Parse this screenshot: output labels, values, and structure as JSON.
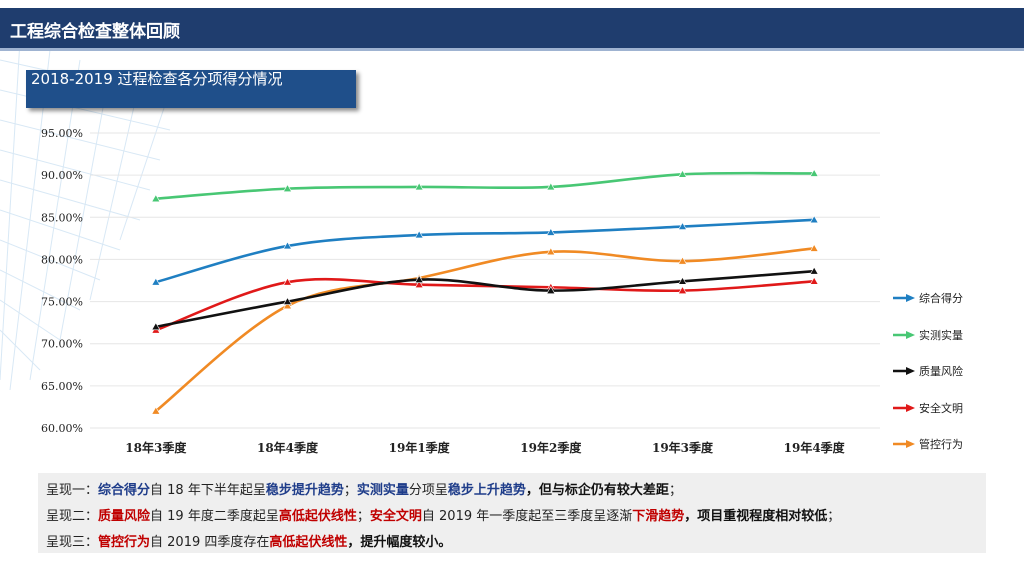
{
  "header": {
    "title": "工程综合检查整体回顾"
  },
  "subtitle": "2018-2019 过程检查各分项得分情况",
  "chart_data": {
    "type": "line",
    "categories": [
      "18年3季度",
      "18年4季度",
      "19年1季度",
      "19年2季度",
      "19年3季度",
      "19年4季度"
    ],
    "ylim": [
      60,
      95
    ],
    "yticks": [
      "60.00%",
      "65.00%",
      "70.00%",
      "75.00%",
      "80.00%",
      "85.00%",
      "90.00%",
      "95.00%"
    ],
    "grid": true,
    "legend_position": "right",
    "series": [
      {
        "name": "综合得分",
        "color": "#1f7fc2",
        "values": [
          77.3,
          81.6,
          82.9,
          83.2,
          83.9,
          84.7
        ]
      },
      {
        "name": "实测实量",
        "color": "#48c774",
        "values": [
          87.2,
          88.4,
          88.6,
          88.6,
          90.1,
          90.2
        ]
      },
      {
        "name": "质量风险",
        "color": "#111111",
        "values": [
          72.0,
          75.0,
          77.6,
          76.3,
          77.4,
          78.6
        ]
      },
      {
        "name": "安全文明",
        "color": "#e01919",
        "values": [
          71.6,
          77.3,
          77.0,
          76.7,
          76.3,
          77.4
        ]
      },
      {
        "name": "管控行为",
        "color": "#f08a24",
        "values": [
          62.0,
          74.5,
          77.8,
          80.9,
          79.8,
          81.3
        ]
      }
    ]
  },
  "notes": [
    [
      {
        "t": "呈现一：",
        "s": ""
      },
      {
        "t": "综合得分",
        "s": "b-blue"
      },
      {
        "t": "自 18 年下半年起呈",
        "s": ""
      },
      {
        "t": "稳步提升趋势",
        "s": "b-blue"
      },
      {
        "t": "；",
        "s": ""
      },
      {
        "t": "实测实量",
        "s": "b-blue"
      },
      {
        "t": "分项呈",
        "s": ""
      },
      {
        "t": "稳步上升趋势",
        "s": "b-blue"
      },
      {
        "t": "，但与标企仍有较大差距",
        "s": "b-black"
      },
      {
        "t": "；",
        "s": ""
      }
    ],
    [
      {
        "t": "呈现二：",
        "s": ""
      },
      {
        "t": "质量风险",
        "s": "b-red"
      },
      {
        "t": "自 19 年度二季度起呈",
        "s": ""
      },
      {
        "t": "高低起伏线性",
        "s": "b-red"
      },
      {
        "t": "；",
        "s": ""
      },
      {
        "t": "安全文明",
        "s": "b-red"
      },
      {
        "t": "自 2019 年一季度起至三季度呈逐渐",
        "s": ""
      },
      {
        "t": "下滑趋势",
        "s": "b-red"
      },
      {
        "t": "，项目重视程度相对较低",
        "s": "b-black"
      },
      {
        "t": "；",
        "s": ""
      }
    ],
    [
      {
        "t": "呈现三：",
        "s": ""
      },
      {
        "t": "管控行为",
        "s": "b-red"
      },
      {
        "t": "自 2019 四季度存在",
        "s": ""
      },
      {
        "t": "高低起伏线性",
        "s": "b-red"
      },
      {
        "t": "，提升幅度较小。",
        "s": "b-black"
      }
    ]
  ]
}
